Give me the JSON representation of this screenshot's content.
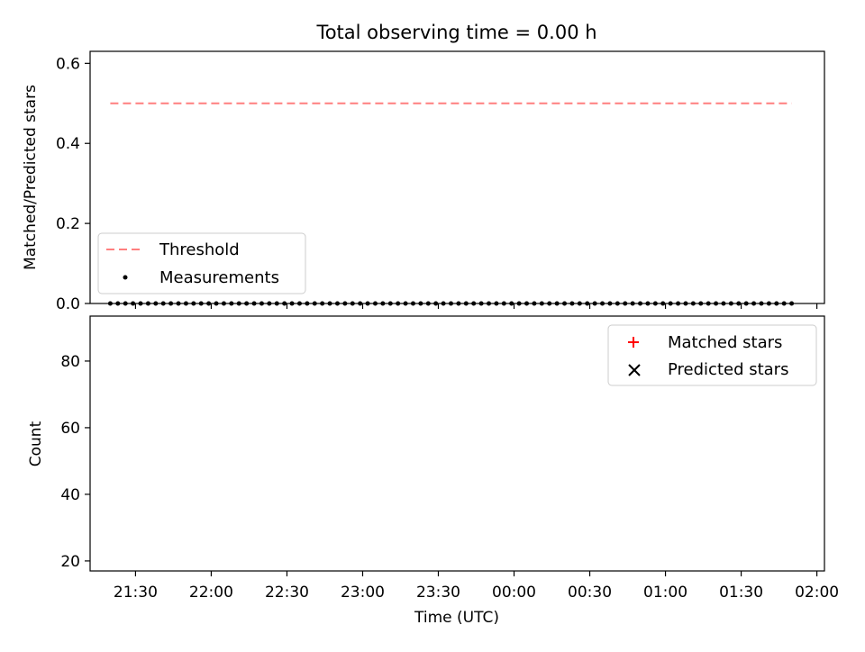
{
  "chart_data": [
    {
      "type": "scatter",
      "title": "Total observing time = 0.00 h",
      "xlabel": "",
      "ylabel": "Matched/Predicted stars",
      "x_is_time": true,
      "xlim": [
        "21:12",
        "02:03"
      ],
      "ylim": [
        0,
        0.63
      ],
      "yticks": [
        "0.0",
        "0.2",
        "0.4",
        "0.6"
      ],
      "legend_position": "lower-left",
      "series": [
        {
          "name": "Threshold",
          "kind": "dashed-line",
          "color": "#ff7f7f",
          "x": [
            "21:20",
            "01:50"
          ],
          "y": [
            0.5,
            0.5
          ]
        },
        {
          "name": "Measurements",
          "kind": "dots",
          "color": "#000000",
          "x": [
            "21:20",
            "21:23",
            "21:26",
            "21:29",
            "21:32",
            "21:35",
            "21:38",
            "21:41",
            "21:44",
            "21:47",
            "21:50",
            "21:53",
            "21:56",
            "21:59",
            "22:02",
            "22:05",
            "22:08",
            "22:11",
            "22:14",
            "22:17",
            "22:20",
            "22:23",
            "22:26",
            "22:29",
            "22:32",
            "22:35",
            "22:38",
            "22:41",
            "22:44",
            "22:47",
            "22:50",
            "22:53",
            "22:56",
            "22:59",
            "23:02",
            "23:05",
            "23:08",
            "23:11",
            "23:14",
            "23:17",
            "23:20",
            "23:23",
            "23:26",
            "23:29",
            "23:32",
            "23:35",
            "23:38",
            "23:41",
            "23:44",
            "23:47",
            "23:50",
            "23:53",
            "23:56",
            "23:59",
            "00:02",
            "00:05",
            "00:08",
            "00:11",
            "00:14",
            "00:17",
            "00:20",
            "00:23",
            "00:26",
            "00:29",
            "00:32",
            "00:35",
            "00:38",
            "00:41",
            "00:44",
            "00:47",
            "00:50",
            "00:53",
            "00:56",
            "00:59",
            "01:02",
            "01:05",
            "01:08",
            "01:11",
            "01:14",
            "01:17",
            "01:20",
            "01:23",
            "01:26",
            "01:29",
            "01:32",
            "01:35",
            "01:38",
            "01:41",
            "01:44",
            "01:47",
            "01:50"
          ],
          "y": [
            0.0,
            0.0,
            0.0,
            0.0,
            0.0,
            0.0,
            0.0,
            0.0,
            0.0,
            0.0,
            0.0,
            0.0,
            0.0,
            0.0,
            0.0,
            0.0,
            0.0,
            0.0,
            0.0,
            0.0,
            0.0,
            0.0,
            0.0,
            0.0,
            0.0,
            0.0,
            0.0,
            0.0,
            0.0,
            0.0,
            0.0,
            0.0,
            0.0,
            0.0,
            0.0,
            0.0,
            0.0,
            0.0,
            0.0,
            0.0,
            0.0,
            0.0,
            0.0,
            0.0,
            0.0,
            0.0,
            0.0,
            0.0,
            0.0,
            0.0,
            0.0,
            0.0,
            0.0,
            0.0,
            0.0,
            0.0,
            0.0,
            0.0,
            0.0,
            0.0,
            0.0,
            0.0,
            0.0,
            0.0,
            0.0,
            0.0,
            0.0,
            0.0,
            0.0,
            0.0,
            0.0,
            0.0,
            0.0,
            0.0,
            0.0,
            0.0,
            0.0,
            0.0,
            0.0,
            0.0,
            0.0,
            0.0,
            0.0,
            0.0,
            0.0,
            0.0,
            0.0,
            0.0,
            0.0,
            0.0,
            0.0
          ]
        }
      ]
    },
    {
      "type": "scatter",
      "title": "",
      "xlabel": "Time (UTC)",
      "ylabel": "Count",
      "x_is_time": true,
      "xlim": [
        "21:12",
        "02:03"
      ],
      "ylim": [
        17,
        93.5
      ],
      "xticks": [
        "21:30",
        "22:00",
        "22:30",
        "23:00",
        "23:30",
        "00:00",
        "00:30",
        "01:00",
        "01:30",
        "02:00"
      ],
      "yticks": [
        "20",
        "40",
        "60",
        "80"
      ],
      "legend_position": "top-right",
      "series": [
        {
          "name": "Matched stars",
          "kind": "plus",
          "color": "#ff0000",
          "x": [],
          "y": []
        },
        {
          "name": "Predicted stars",
          "kind": "x",
          "color": "#000000",
          "x": [],
          "y": []
        }
      ]
    }
  ]
}
